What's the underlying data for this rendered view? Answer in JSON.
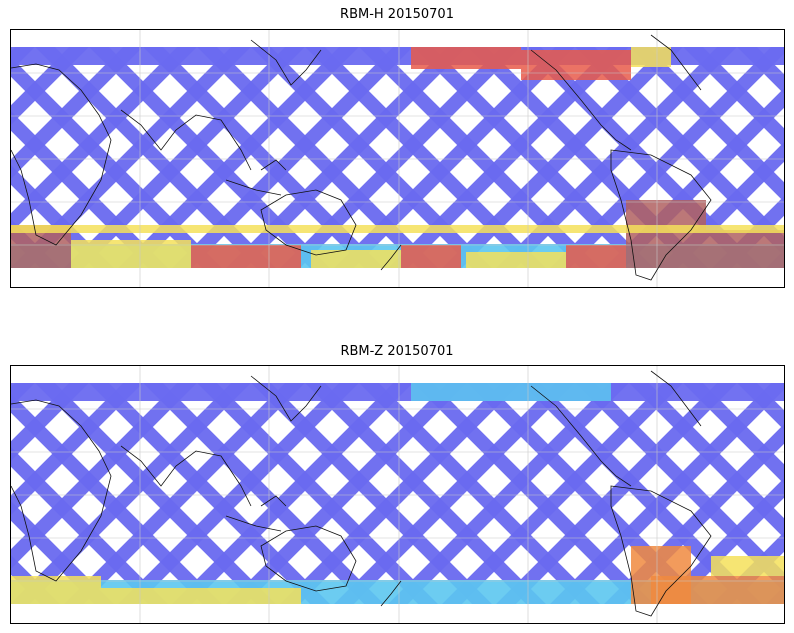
{
  "panels": [
    {
      "title": "RBM-H 20150701",
      "swath_colors": {
        "base": "#6a6af0",
        "mid": "#5cc6f0",
        "high": "#f5e05a",
        "max": "#e85a4a",
        "saturated": "#b06060"
      }
    },
    {
      "title": "RBM-Z 20150701",
      "swath_colors": {
        "base": "#6a6af0",
        "mid": "#5cc6f0",
        "high": "#f5e05a",
        "max": "#f08a40"
      }
    }
  ],
  "colormap": "jet",
  "grid": true
}
